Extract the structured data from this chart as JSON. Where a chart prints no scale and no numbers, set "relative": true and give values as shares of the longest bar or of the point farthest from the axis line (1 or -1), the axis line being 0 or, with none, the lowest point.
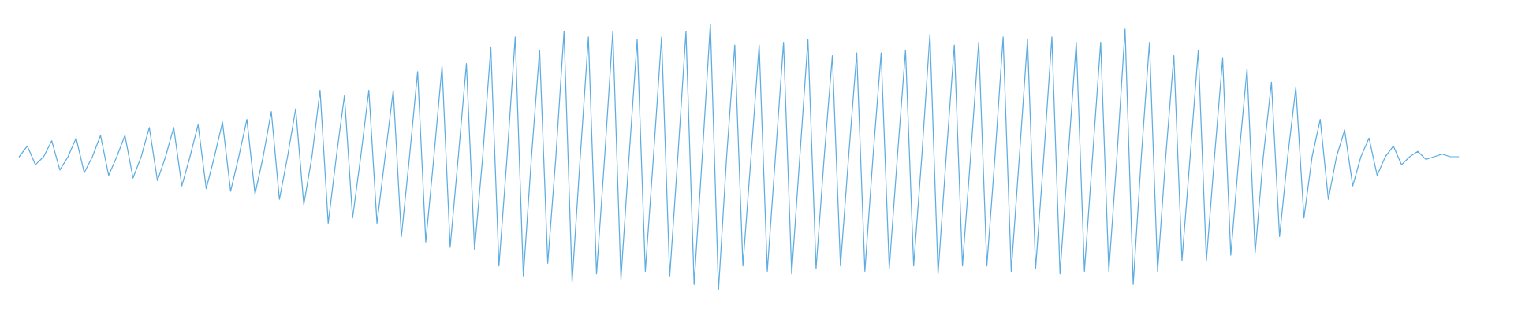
{
  "chart_data": {
    "type": "line",
    "relative": true,
    "color": "#5dade2",
    "marker": "none",
    "line_style": "solid",
    "categories": [
      null,
      null,
      null,
      null,
      null,
      null,
      null,
      null,
      null,
      null,
      null,
      null,
      null,
      null,
      null,
      null,
      null,
      null,
      null,
      null,
      null,
      null,
      null,
      null,
      null,
      null,
      null,
      null,
      null,
      null,
      null,
      null,
      null,
      null,
      null,
      null,
      null,
      null,
      null,
      null,
      null,
      null,
      null,
      null,
      null,
      null,
      null,
      null,
      null,
      null,
      null,
      null,
      null,
      null,
      null,
      null,
      null,
      null,
      null,
      null,
      null,
      null,
      null,
      null,
      null,
      null,
      null,
      null,
      null,
      null,
      null,
      null,
      null,
      null,
      null,
      null,
      null,
      null,
      null,
      null,
      null,
      null,
      null,
      null,
      null,
      null,
      null,
      null,
      null,
      null,
      null,
      null,
      null,
      null,
      null,
      null,
      null,
      null,
      null,
      null,
      null,
      null,
      null,
      null,
      null,
      null,
      null,
      null,
      null,
      null,
      null,
      null,
      null,
      null,
      null,
      null,
      null,
      null,
      null,
      null,
      null,
      null,
      null,
      null,
      null,
      null,
      null,
      null,
      null,
      null,
      null,
      null,
      null,
      null,
      null,
      null,
      null,
      null,
      null,
      null,
      null,
      null,
      null,
      null,
      null,
      null,
      null,
      null,
      null,
      null,
      null,
      null,
      null,
      null,
      null,
      null,
      null,
      null,
      null,
      null,
      null,
      null,
      null,
      null,
      null,
      null,
      null,
      null,
      null,
      null,
      null,
      null,
      null,
      null,
      null,
      null,
      null,
      null
    ],
    "values": [
      0.5,
      0.54,
      0.47,
      0.5,
      0.56,
      0.45,
      0.5,
      0.57,
      0.44,
      0.5,
      0.58,
      0.43,
      0.5,
      0.58,
      0.42,
      0.5,
      0.61,
      0.41,
      0.5,
      0.61,
      0.39,
      0.5,
      0.62,
      0.38,
      0.5,
      0.63,
      0.37,
      0.5,
      0.64,
      0.36,
      0.5,
      0.67,
      0.34,
      0.5,
      0.68,
      0.32,
      0.5,
      0.75,
      0.25,
      0.5,
      0.73,
      0.27,
      0.5,
      0.75,
      0.25,
      0.5,
      0.75,
      0.2,
      0.5,
      0.82,
      0.18,
      0.5,
      0.84,
      0.16,
      0.5,
      0.85,
      0.15,
      0.5,
      0.91,
      0.09,
      0.5,
      0.95,
      0.05,
      0.5,
      0.9,
      0.1,
      0.5,
      0.97,
      0.03,
      0.5,
      0.95,
      0.06,
      0.5,
      0.97,
      0.04,
      0.5,
      0.94,
      0.07,
      0.5,
      0.95,
      0.05,
      0.5,
      0.97,
      0.02,
      0.5,
      1.0,
      0.0,
      0.5,
      0.92,
      0.09,
      0.5,
      0.92,
      0.07,
      0.5,
      0.93,
      0.06,
      0.5,
      0.94,
      0.08,
      0.5,
      0.88,
      0.09,
      0.5,
      0.89,
      0.07,
      0.5,
      0.89,
      0.08,
      0.5,
      0.9,
      0.09,
      0.5,
      0.96,
      0.06,
      0.5,
      0.92,
      0.09,
      0.5,
      0.93,
      0.09,
      0.5,
      0.95,
      0.07,
      0.5,
      0.94,
      0.08,
      0.5,
      0.95,
      0.06,
      0.5,
      0.93,
      0.07,
      0.5,
      0.93,
      0.07,
      0.5,
      0.98,
      0.02,
      0.5,
      0.93,
      0.07,
      0.5,
      0.88,
      0.11,
      0.5,
      0.9,
      0.11,
      0.5,
      0.87,
      0.13,
      0.5,
      0.83,
      0.14,
      0.5,
      0.78,
      0.2,
      0.5,
      0.76,
      0.27,
      0.5,
      0.64,
      0.34,
      0.5,
      0.6,
      0.39,
      0.5,
      0.57,
      0.43,
      0.5,
      0.54,
      0.47,
      0.5,
      0.52,
      0.49,
      0.5,
      0.51,
      0.5,
      0.5
    ]
  }
}
